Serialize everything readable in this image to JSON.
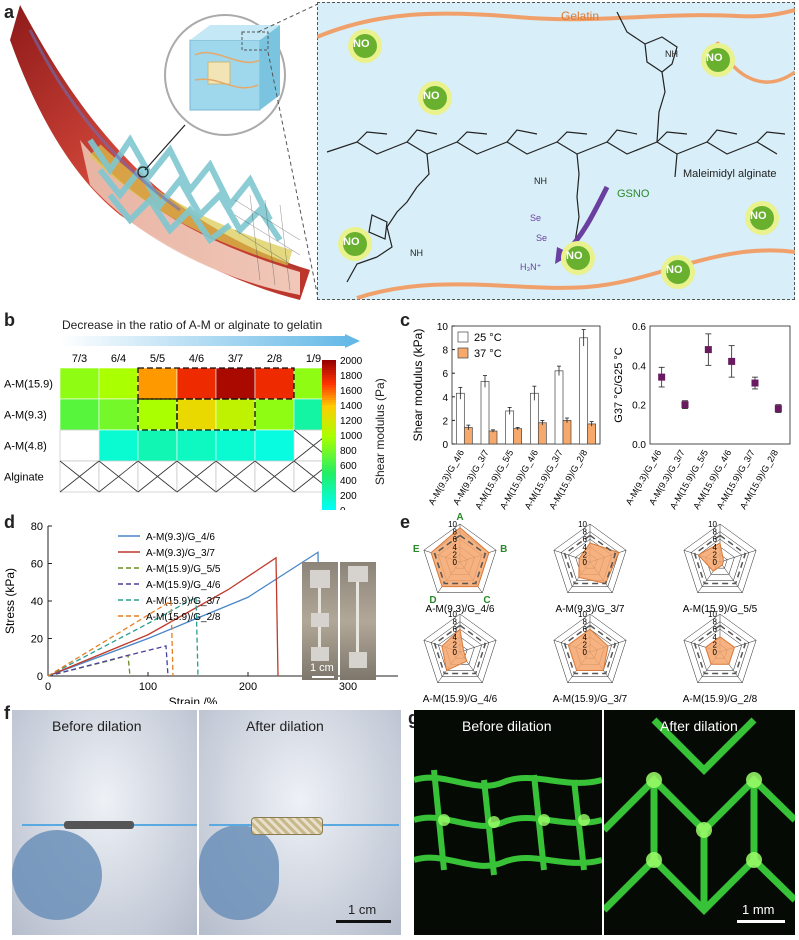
{
  "panel_labels": {
    "a": "a",
    "b": "b",
    "c": "c",
    "d": "d",
    "e": "e",
    "f": "f",
    "g": "g"
  },
  "panel_a": {
    "gelatin": "Gelatin",
    "no": "NO",
    "maleimidyl": "Maleimidyl alginate",
    "gsno": "GSNO",
    "nh": "NH",
    "h3n": "H₃N⁺",
    "se": "Se"
  },
  "panel_b": {
    "arrow_label": "Decrease in the ratio of A-M or alginate to gelatin",
    "cols": [
      "7/3",
      "6/4",
      "5/5",
      "4/6",
      "3/7",
      "2/8",
      "1/9"
    ],
    "rows": [
      "A-M(15.9)",
      "A-M(9.3)",
      "A-M(4.8)",
      "Alginate"
    ],
    "colorbar_label": "Shear modulus (Pa)",
    "colorbar_ticks": [
      "2000",
      "1800",
      "1600",
      "1400",
      "1200",
      "1000",
      "800",
      "600",
      "400",
      "200",
      "0"
    ],
    "colors": {
      "c0": "#00ffff",
      "c500": "#22ee66",
      "c1000": "#aaff00",
      "c1400": "#ffcc00",
      "c1700": "#ff3300",
      "c2000": "#990000"
    }
  },
  "panel_c": {
    "legend": [
      "25 °C",
      "37 °C"
    ],
    "legend_colors": [
      "#ffffff",
      "#f6a96b"
    ]
  },
  "panel_d": {
    "scale": "1 cm"
  },
  "panel_e": {
    "axis_letters": [
      "A",
      "B",
      "C",
      "D",
      "E"
    ],
    "ticks": [
      "0",
      "2",
      "4",
      "6",
      "8",
      "10"
    ],
    "fill_color": "#f4a46a"
  },
  "panel_f": {
    "before": "Before dilation",
    "after": "After dilation",
    "scale": "1 cm"
  },
  "panel_g": {
    "before": "Before dilation",
    "after": "After dilation",
    "scale": "1 mm"
  },
  "chart_data": [
    {
      "type": "heatmap",
      "xlabel": "Decrease in the ratio of A-M or alginate to gelatin",
      "categories_x": [
        "7/3",
        "6/4",
        "5/5",
        "4/6",
        "3/7",
        "2/8",
        "1/9"
      ],
      "categories_y": [
        "A-M(15.9)",
        "A-M(9.3)",
        "A-M(4.8)",
        "Alginate"
      ],
      "values": [
        [
          900,
          1000,
          1500,
          1750,
          1950,
          1750,
          900
        ],
        [
          700,
          800,
          1000,
          1300,
          1100,
          900,
          300
        ],
        [
          null,
          150,
          250,
          200,
          150,
          100,
          null
        ],
        [
          null,
          null,
          null,
          null,
          null,
          null,
          null
        ]
      ],
      "colorbar_label": "Shear modulus (Pa)",
      "zlim": [
        0,
        2000
      ]
    },
    {
      "type": "bar",
      "ylabel": "Shear modulus (kPa)",
      "ylim": [
        0,
        10
      ],
      "yticks": [
        0,
        2,
        4,
        6,
        8,
        10
      ],
      "categories": [
        "A-M(9.3)/G_4/6",
        "A-M(9.3)/G_3/7",
        "A-M(15.9)/G_5/5",
        "A-M(15.9)/G_4/6",
        "A-M(15.9)/G_3/7",
        "A-M(15.9)/G_2/8"
      ],
      "series": [
        {
          "name": "25 °C",
          "values": [
            4.3,
            5.3,
            2.8,
            4.3,
            6.2,
            9.0
          ],
          "errors": [
            0.5,
            0.5,
            0.3,
            0.6,
            0.4,
            0.7
          ]
        },
        {
          "name": "37 °C",
          "values": [
            1.4,
            1.1,
            1.3,
            1.8,
            2.0,
            1.7
          ],
          "errors": [
            0.2,
            0.1,
            0.1,
            0.2,
            0.2,
            0.2
          ]
        }
      ]
    },
    {
      "type": "scatter",
      "ylabel": "G37 °C/G25 °C",
      "ylim": [
        0,
        0.6
      ],
      "yticks": [
        0.0,
        0.2,
        0.4,
        0.6
      ],
      "categories": [
        "A-M(9.3)/G_4/6",
        "A-M(9.3)/G_3/7",
        "A-M(15.9)/G_5/5",
        "A-M(15.9)/G_4/6",
        "A-M(15.9)/G_3/7",
        "A-M(15.9)/G_2/8"
      ],
      "values": [
        0.34,
        0.2,
        0.48,
        0.42,
        0.31,
        0.18
      ],
      "errors": [
        0.05,
        0.02,
        0.08,
        0.08,
        0.03,
        0.02
      ],
      "color": "#6a1a5e"
    },
    {
      "type": "line",
      "xlabel": "Strain /%",
      "ylabel": "Stress (kPa)",
      "xlim": [
        0,
        350
      ],
      "ylim": [
        0,
        80
      ],
      "xticks": [
        0,
        100,
        200,
        300
      ],
      "yticks": [
        0,
        20,
        40,
        60,
        80
      ],
      "series": [
        {
          "name": "A-M(9.3)/G_4/6",
          "color": "#4a86c6",
          "dash": false,
          "x": [
            0,
            100,
            200,
            270,
            272
          ],
          "y": [
            0,
            20,
            42,
            66,
            0
          ]
        },
        {
          "name": "A-M(9.3)/G_3/7",
          "color": "#c0392b",
          "dash": false,
          "x": [
            0,
            100,
            180,
            228,
            230
          ],
          "y": [
            0,
            22,
            46,
            63,
            0
          ]
        },
        {
          "name": "A-M(15.9)/G_5/5",
          "color": "#6b8e23",
          "dash": true,
          "x": [
            0,
            60,
            80,
            82
          ],
          "y": [
            0,
            8,
            11,
            0
          ]
        },
        {
          "name": "A-M(15.9)/G_4/6",
          "color": "#4a3f9c",
          "dash": true,
          "x": [
            0,
            80,
            118,
            120
          ],
          "y": [
            0,
            11,
            16,
            0
          ]
        },
        {
          "name": "A-M(15.9)/G_3/7",
          "color": "#2a9d8f",
          "dash": true,
          "x": [
            0,
            100,
            148,
            150
          ],
          "y": [
            0,
            28,
            42,
            0
          ]
        },
        {
          "name": "A-M(15.9)/G_2/8",
          "color": "#e67e22",
          "dash": true,
          "x": [
            0,
            80,
            123,
            125
          ],
          "y": [
            0,
            26,
            40,
            0
          ]
        }
      ]
    },
    {
      "type": "radar",
      "axes": [
        "A",
        "B",
        "C",
        "D",
        "E"
      ],
      "range": [
        0,
        10
      ],
      "charts": [
        {
          "name": "A-M(9.3)/G_4/6",
          "values": [
            9,
            8,
            8,
            8,
            8
          ]
        },
        {
          "name": "A-M(9.3)/G_3/7",
          "values": [
            5,
            8,
            7,
            5,
            3
          ]
        },
        {
          "name": "A-M(15.9)/G_5/5",
          "values": [
            5,
            1,
            1,
            3,
            6
          ]
        },
        {
          "name": "A-M(15.9)/G_4/6",
          "values": [
            6,
            1,
            3,
            6,
            5
          ]
        },
        {
          "name": "A-M(15.9)/G_3/7",
          "values": [
            6,
            5,
            6,
            6,
            6
          ]
        },
        {
          "name": "A-M(15.9)/G_2/8",
          "values": [
            4,
            4,
            4,
            4,
            4
          ]
        }
      ]
    }
  ]
}
